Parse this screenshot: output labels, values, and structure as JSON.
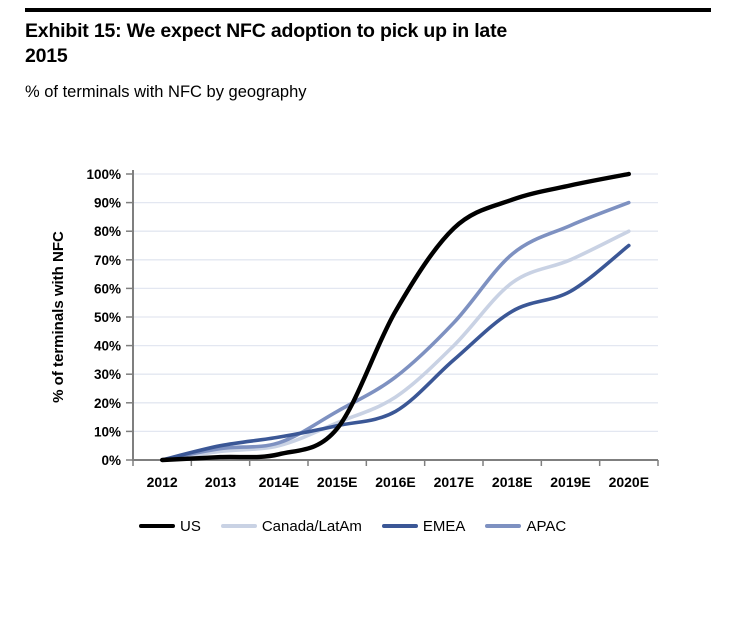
{
  "exhibit": {
    "title_line1": "Exhibit 15: We expect NFC adoption to pick up in late",
    "title_line2": "2015",
    "subtitle": "% of terminals with NFC by geography"
  },
  "colors": {
    "rule": "#000000",
    "axis": "#7f7f7f",
    "gridline": "#e3e7f1",
    "text": "#000000"
  },
  "chart_data": {
    "type": "line",
    "title": "Exhibit 15: We expect NFC adoption to pick up in late 2015",
    "subtitle": "% of terminals with NFC by geography",
    "xlabel": "",
    "ylabel": "% of terminals with NFC",
    "ylim": [
      0,
      100
    ],
    "ytick_step": 10,
    "ytick_suffix": "%",
    "grid": true,
    "legend_position": "bottom",
    "categories": [
      "2012",
      "2013",
      "2014E",
      "2015E",
      "2016E",
      "2017E",
      "2018E",
      "2019E",
      "2020E"
    ],
    "series": [
      {
        "name": "US",
        "color": "#000000",
        "values": [
          0,
          1,
          2,
          11,
          52,
          81,
          91,
          96,
          100
        ]
      },
      {
        "name": "Canada/LatAm",
        "color": "#c9d2e4",
        "values": [
          0,
          3,
          5,
          13,
          22,
          40,
          62,
          70,
          80
        ]
      },
      {
        "name": "EMEA",
        "color": "#3b5796",
        "values": [
          0,
          5,
          8,
          12,
          17,
          35,
          52,
          59,
          75
        ]
      },
      {
        "name": "APAC",
        "color": "#7e91c1",
        "values": [
          0,
          4,
          6,
          17,
          29,
          48,
          72,
          82,
          90
        ]
      }
    ]
  }
}
